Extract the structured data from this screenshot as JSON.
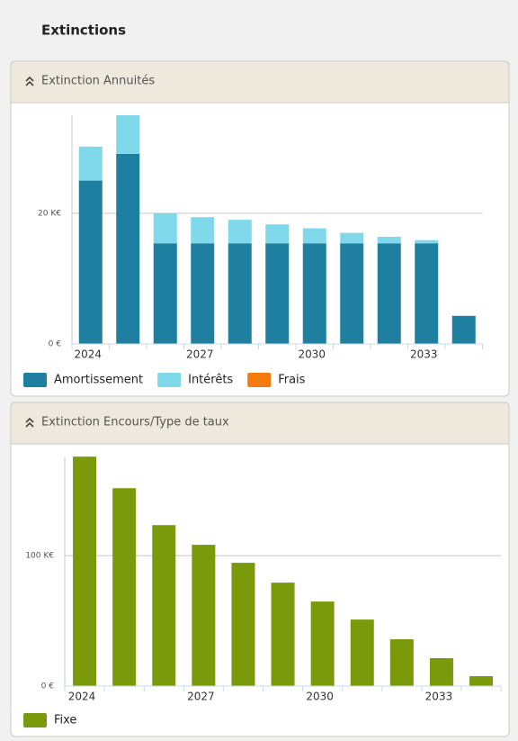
{
  "header": {
    "title": "Extinctions"
  },
  "chart_data": [
    {
      "type": "bar",
      "stacked": true,
      "title": "Extinction Annuités",
      "categories": [
        "2024",
        null,
        null,
        "2027",
        null,
        null,
        "2030",
        null,
        null,
        "2033",
        null
      ],
      "series": [
        {
          "name": "Amortissement",
          "color": "#1f7fa0",
          "values": [
            25.0,
            29.1,
            15.4,
            15.4,
            15.4,
            15.4,
            15.4,
            15.4,
            15.4,
            15.4,
            4.3
          ]
        },
        {
          "name": "Intérêts",
          "color": "#80d9ea",
          "values": [
            5.2,
            5.9,
            4.6,
            4.0,
            3.6,
            2.9,
            2.3,
            1.6,
            1.0,
            0.5,
            0
          ]
        },
        {
          "name": "Frais",
          "color": "#f47a10",
          "values": [
            0,
            0,
            0,
            0,
            0,
            0,
            0,
            0,
            0,
            0,
            0
          ]
        }
      ],
      "ylim": [
        0,
        35
      ],
      "yticks": [
        {
          "value": 0,
          "label": "0 €"
        },
        {
          "value": 20,
          "label": "20 K€"
        }
      ],
      "grid": true,
      "legend": "bottom"
    },
    {
      "type": "bar",
      "stacked": false,
      "title": "Extinction Encours/Type de taux",
      "categories": [
        "2024",
        null,
        null,
        "2027",
        null,
        null,
        "2030",
        null,
        null,
        "2033",
        null
      ],
      "series": [
        {
          "name": "Fixe",
          "color": "#7a9a0b",
          "values": [
            175.9,
            151.7,
            123.4,
            108.3,
            94.5,
            79.3,
            64.8,
            51.0,
            35.9,
            21.4,
            7.6
          ]
        }
      ],
      "ylim": [
        0,
        176
      ],
      "yticks": [
        {
          "value": 0,
          "label": "0 €"
        },
        {
          "value": 100,
          "label": "100 K€"
        }
      ],
      "grid": true,
      "legend": "bottom"
    }
  ]
}
